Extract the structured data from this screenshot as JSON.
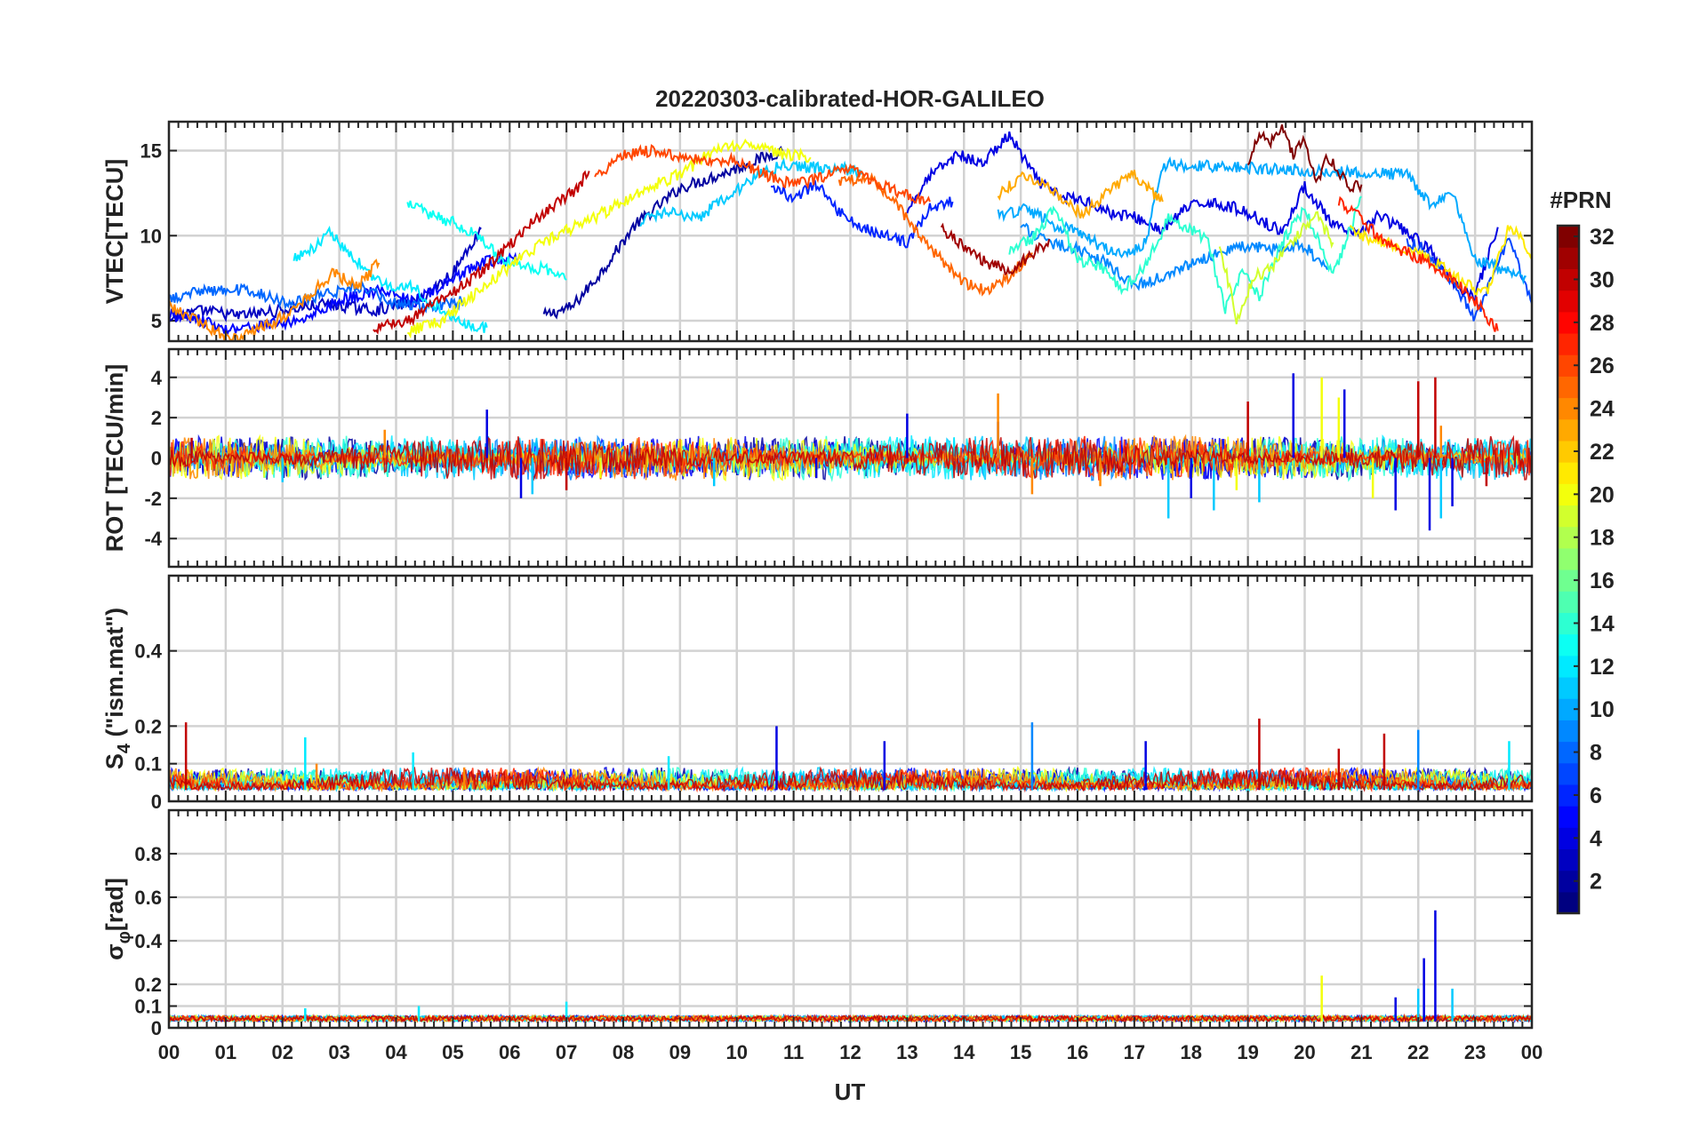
{
  "chart_data": {
    "type": "line",
    "title": "20220303-calibrated-HOR-GALILEO",
    "xlabel": "UT",
    "x_tick_labels": [
      "00",
      "01",
      "02",
      "03",
      "04",
      "05",
      "06",
      "07",
      "08",
      "09",
      "10",
      "11",
      "12",
      "13",
      "14",
      "15",
      "16",
      "17",
      "18",
      "19",
      "20",
      "21",
      "22",
      "23",
      "00"
    ],
    "xlim": [
      0,
      24
    ],
    "grid": true,
    "colorbar": {
      "title": "#PRN",
      "range": [
        1,
        32
      ],
      "tick_labels": [
        "2",
        "4",
        "6",
        "8",
        "10",
        "12",
        "14",
        "16",
        "18",
        "20",
        "22",
        "24",
        "26",
        "28",
        "30",
        "32"
      ],
      "colormap": "jet"
    },
    "panels": [
      {
        "id": "vtec",
        "ylabel": "VTEC[TECU]",
        "ylim": [
          3.8,
          16.7
        ],
        "ytick_values": [
          5,
          10,
          15
        ],
        "ytick_labels": [
          "5",
          "10",
          "15"
        ],
        "series": [
          {
            "name": "PRN 2",
            "prn": 2,
            "x": [
              6.6,
              7.1,
              7.6,
              8.2,
              9.0,
              9.8,
              10.4,
              10.8
            ],
            "y": [
              5.3,
              5.8,
              7.8,
              10.6,
              12.8,
              13.7,
              14.5,
              15.0
            ]
          },
          {
            "name": "PRN 3",
            "prn": 3,
            "x": [
              0.0,
              0.6,
              1.2,
              2.0,
              2.8,
              3.6,
              4.4,
              5.0,
              5.5
            ],
            "y": [
              5.1,
              5.6,
              5.3,
              5.6,
              6.0,
              5.6,
              6.2,
              7.8,
              10.4
            ]
          },
          {
            "name": "PRN 4",
            "prn": 4,
            "x": [
              13.0,
              13.4,
              13.9,
              14.3,
              14.8,
              15.3,
              15.7,
              16.2,
              16.6,
              17.0,
              17.5,
              17.9,
              18.3,
              18.8,
              19.2,
              19.6,
              20.0,
              20.5,
              20.9,
              21.3,
              21.8,
              22.2,
              22.6,
              23.0,
              23.4
            ],
            "y": [
              11.5,
              13.5,
              14.8,
              14.2,
              15.9,
              13.2,
              12.3,
              12.0,
              11.3,
              11.1,
              10.3,
              11.6,
              12.0,
              11.6,
              11.0,
              10.2,
              12.9,
              10.6,
              10.0,
              11.2,
              10.2,
              9.2,
              7.2,
              6.5,
              10.5
            ]
          },
          {
            "name": "PRN 5",
            "prn": 5,
            "x": [
              0.0,
              0.5,
              1.0,
              1.6,
              2.3,
              3.0,
              3.7,
              4.3,
              5.0,
              5.6,
              6.2
            ],
            "y": [
              5.4,
              5.1,
              4.5,
              4.7,
              5.0,
              6.2,
              6.8,
              6.1,
              7.4,
              8.5,
              8.6
            ]
          },
          {
            "name": "PRN 6",
            "prn": 6,
            "x": [
              10.6,
              11.0,
              11.4,
              11.8,
              12.2,
              12.6,
              13.0,
              13.4,
              13.8
            ],
            "y": [
              13.0,
              12.2,
              13.0,
              11.4,
              10.5,
              10.0,
              9.6,
              11.6,
              12.0
            ]
          },
          {
            "name": "PRN 7",
            "prn": 7,
            "x": [
              21.8,
              22.1,
              22.4,
              22.7,
              23.0,
              23.3,
              23.6,
              24.0
            ],
            "y": [
              9.7,
              9.2,
              8.0,
              6.8,
              5.0,
              7.5,
              9.8,
              6.0
            ]
          },
          {
            "name": "PRN 8",
            "prn": 8,
            "x": [
              0.0,
              0.7,
              1.4,
              2.1,
              2.8,
              3.4,
              4.0,
              4.6,
              5.2
            ],
            "y": [
              6.3,
              6.8,
              6.8,
              6.0,
              6.6,
              7.0,
              6.0,
              5.8,
              6.2
            ]
          },
          {
            "name": "PRN 9",
            "prn": 9,
            "x": [
              15.0,
              15.5,
              16.0,
              16.5,
              17.0,
              17.5,
              18.0,
              18.5,
              19.0,
              19.5,
              20.0,
              20.4
            ],
            "y": [
              10.6,
              9.6,
              9.2,
              8.4,
              7.0,
              7.6,
              8.4,
              9.0,
              9.4,
              9.2,
              9.4,
              8.0
            ]
          },
          {
            "name": "PRN 10",
            "prn": 10,
            "x": [
              14.6,
              15.1,
              15.6,
              16.0,
              16.4,
              16.8,
              17.2,
              17.5,
              21.8,
              22.2,
              22.6,
              23.0,
              23.5,
              23.9
            ],
            "y": [
              11.2,
              11.6,
              10.6,
              10.2,
              9.4,
              8.8,
              9.6,
              14.2,
              13.6,
              11.8,
              12.6,
              8.6,
              8.0,
              7.6
            ]
          },
          {
            "name": "PRN 11",
            "prn": 11,
            "x": [
              8.3,
              8.8,
              9.3,
              9.8,
              10.3,
              10.8,
              11.3,
              11.8,
              12.2
            ],
            "y": [
              10.8,
              11.4,
              11.0,
              12.2,
              13.4,
              14.2,
              14.0,
              14.0,
              13.6
            ]
          },
          {
            "name": "PRN 12",
            "prn": 12,
            "x": [
              2.2,
              2.6,
              2.8,
              3.2,
              3.6,
              4.0,
              4.3,
              4.6,
              5.0,
              5.3,
              5.6
            ],
            "y": [
              8.6,
              9.4,
              10.3,
              8.8,
              7.6,
              6.8,
              7.0,
              6.0,
              5.2,
              4.8,
              4.6
            ]
          },
          {
            "name": "PRN 13",
            "prn": 13,
            "x": [
              4.2,
              4.5,
              4.8,
              5.0,
              5.4,
              5.8,
              6.2,
              6.7,
              7.0
            ],
            "y": [
              12.0,
              11.4,
              11.0,
              10.8,
              10.0,
              8.8,
              8.2,
              8.0,
              7.4
            ]
          },
          {
            "name": "PRN 14",
            "prn": 14,
            "x": [
              14.8,
              15.2,
              15.6,
              16.0,
              16.4,
              16.8,
              17.2,
              17.6,
              18.0,
              18.3,
              18.6,
              18.9,
              19.2,
              19.6,
              20.0,
              20.5,
              21.0
            ],
            "y": [
              9.2,
              9.8,
              11.6,
              8.6,
              8.2,
              6.8,
              8.2,
              11.0,
              10.4,
              9.6,
              5.6,
              8.0,
              6.4,
              9.6,
              11.6,
              7.6,
              12.3
            ]
          },
          {
            "name": "PRN 19",
            "prn": 19,
            "x": [
              18.5,
              18.8,
              19.1,
              19.4,
              19.8,
              20.2,
              20.5
            ],
            "y": [
              9.6,
              5.0,
              7.6,
              8.0,
              9.8,
              11.2,
              9.6
            ]
          },
          {
            "name": "PRN 20",
            "prn": 20,
            "x": [
              4.2,
              4.8,
              5.4,
              6.0,
              6.6,
              7.2,
              7.8,
              8.4,
              9.0,
              9.6,
              10.2,
              10.8,
              11.3
            ],
            "y": [
              4.4,
              5.0,
              6.6,
              8.2,
              9.6,
              10.6,
              11.6,
              12.8,
              13.6,
              15.0,
              15.4,
              14.8,
              14.6
            ]
          },
          {
            "name": "PRN 21",
            "prn": 21,
            "x": [
              20.8,
              21.2,
              21.6,
              22.0,
              22.4,
              22.8,
              23.2,
              23.6,
              24.0
            ],
            "y": [
              10.3,
              9.8,
              9.4,
              9.0,
              8.2,
              7.2,
              6.6,
              10.6,
              9.0
            ]
          },
          {
            "name": "PRN 23",
            "prn": 23,
            "x": [
              14.6,
              15.1,
              15.6,
              16.1,
              16.6,
              17.0,
              17.5
            ],
            "y": [
              12.4,
              13.6,
              12.6,
              11.2,
              12.8,
              13.6,
              12.0
            ]
          },
          {
            "name": "PRN 24",
            "prn": 24,
            "x": [
              0.0,
              0.6,
              1.1,
              1.6,
              2.1,
              2.5,
              2.9,
              3.3,
              3.7
            ],
            "y": [
              5.8,
              4.8,
              3.9,
              4.5,
              5.4,
              6.6,
              7.8,
              7.0,
              8.4
            ]
          },
          {
            "name": "PRN 25",
            "prn": 25,
            "x": [
              11.8,
              12.3,
              12.8,
              13.2,
              13.6,
              14.0,
              14.4,
              14.8,
              15.2
            ],
            "y": [
              13.0,
              13.6,
              12.0,
              10.0,
              8.6,
              7.2,
              6.8,
              7.6,
              9.0
            ]
          },
          {
            "name": "PRN 26",
            "prn": 26,
            "x": [
              7.5,
              8.0,
              8.5,
              9.0,
              9.5,
              10.0,
              10.5,
              11.0,
              11.5,
              12.0,
              12.5,
              13.0,
              13.4
            ],
            "y": [
              13.4,
              14.8,
              15.0,
              14.6,
              14.4,
              14.4,
              13.6,
              13.0,
              13.4,
              14.0,
              13.0,
              12.4,
              12.0
            ]
          },
          {
            "name": "PRN 27",
            "prn": 27,
            "x": [
              20.6,
              21.0,
              21.4,
              21.8,
              22.2,
              22.6,
              23.0,
              23.4
            ],
            "y": [
              12.0,
              11.0,
              9.6,
              9.0,
              8.4,
              7.4,
              6.2,
              4.4
            ]
          },
          {
            "name": "PRN 30",
            "prn": 30,
            "x": [
              3.6,
              4.2,
              4.8,
              5.4,
              6.0,
              6.4,
              6.8,
              7.2,
              7.4
            ],
            "y": [
              4.5,
              5.0,
              6.2,
              7.6,
              9.4,
              10.8,
              11.8,
              12.8,
              13.8
            ]
          },
          {
            "name": "PRN 31",
            "prn": 31,
            "x": [
              13.6,
              14.0,
              14.4,
              14.8,
              15.2,
              15.5
            ],
            "y": [
              10.4,
              9.4,
              8.4,
              8.0,
              8.8,
              9.8
            ]
          },
          {
            "name": "PRN 32",
            "prn": 32,
            "x": [
              19.0,
              19.2,
              19.4,
              19.6,
              19.8,
              20.0,
              20.2,
              20.4,
              20.6,
              20.8,
              21.0
            ],
            "y": [
              14.4,
              16.0,
              15.6,
              16.2,
              14.8,
              15.6,
              13.0,
              14.6,
              13.8,
              12.8,
              13.0
            ]
          }
        ]
      },
      {
        "id": "rot",
        "ylabel": "ROT [TECU/min]",
        "ylim": [
          -5.4,
          5.4
        ],
        "ytick_values": [
          -4,
          -2,
          0,
          2,
          4
        ],
        "ytick_labels": [
          "-4",
          "-2",
          "0",
          "2",
          "4"
        ],
        "spikes": [
          {
            "prn": 4,
            "x": [
              5.6,
              6.2,
              11.4,
              13.0,
              14.6,
              18.0,
              19.8,
              20.7,
              21.6,
              22.2,
              22.6
            ],
            "y": [
              2.4,
              -2.0,
              -1.0,
              2.2,
              1.8,
              -2.0,
              4.2,
              3.4,
              -2.6,
              -3.6,
              -2.4
            ]
          },
          {
            "prn": 11,
            "x": [
              2.0,
              6.4,
              9.6,
              17.6,
              18.4,
              19.2,
              22.0,
              22.4
            ],
            "y": [
              -1.2,
              -1.8,
              -1.4,
              -3.0,
              -2.6,
              -2.2,
              3.0,
              -3.0
            ]
          },
          {
            "prn": 20,
            "x": [
              7.6,
              18.8,
              20.3,
              20.6,
              21.2
            ],
            "y": [
              -1.0,
              -1.6,
              4.0,
              3.0,
              -2.0
            ]
          },
          {
            "prn": 24,
            "x": [
              3.8,
              14.6,
              15.2,
              16.4,
              22.4
            ],
            "y": [
              1.4,
              3.2,
              -1.8,
              -1.4,
              1.6
            ]
          },
          {
            "prn": 30,
            "x": [
              0.4,
              7.0,
              19.0,
              22.0,
              22.3,
              23.2
            ],
            "y": [
              1.0,
              -1.6,
              2.8,
              3.8,
              4.0,
              -1.4
            ]
          }
        ]
      },
      {
        "id": "s4",
        "ylabel": "S4 (\"ism.mat\")",
        "ylabel_parts": [
          "S",
          "4",
          " (\"ism.mat\")"
        ],
        "ylim": [
          0,
          0.6
        ],
        "ytick_values": [
          0,
          0.1,
          0.2,
          0.4
        ],
        "ytick_labels": [
          "0",
          "0.1",
          "0.2",
          "0.4"
        ],
        "peaks": [
          {
            "prn": 30,
            "x": [
              0.3,
              19.2,
              20.6,
              21.4
            ],
            "y": [
              0.21,
              0.22,
              0.14,
              0.18
            ]
          },
          {
            "prn": 12,
            "x": [
              2.4,
              4.3,
              8.8,
              23.6
            ],
            "y": [
              0.17,
              0.13,
              0.12,
              0.16
            ]
          },
          {
            "prn": 4,
            "x": [
              10.7,
              12.6,
              17.2
            ],
            "y": [
              0.2,
              0.16,
              0.16
            ]
          },
          {
            "prn": 9,
            "x": [
              15.2,
              22.0
            ],
            "y": [
              0.21,
              0.19
            ]
          },
          {
            "prn": 24,
            "x": [
              2.6,
              5.2
            ],
            "y": [
              0.1,
              0.09
            ]
          }
        ]
      },
      {
        "id": "sigma_phi",
        "ylabel": "σφ [rad]",
        "ylabel_parts": [
          "σ",
          "φ",
          "[rad]"
        ],
        "ylim": [
          0,
          1.0
        ],
        "ytick_values": [
          0,
          0.1,
          0.2,
          0.4,
          0.6,
          0.8
        ],
        "ytick_labels": [
          "0",
          "0.1",
          "0.2",
          "0.4",
          "0.6",
          "0.8"
        ],
        "peaks": [
          {
            "prn": 20,
            "x": [
              20.3
            ],
            "y": [
              0.24
            ]
          },
          {
            "prn": 4,
            "x": [
              21.6,
              22.1,
              22.3
            ],
            "y": [
              0.14,
              0.32,
              0.54
            ]
          },
          {
            "prn": 11,
            "x": [
              22.0,
              22.6
            ],
            "y": [
              0.18,
              0.18
            ]
          },
          {
            "prn": 12,
            "x": [
              2.4,
              4.4,
              7.0
            ],
            "y": [
              0.09,
              0.1,
              0.12
            ]
          }
        ]
      }
    ]
  }
}
